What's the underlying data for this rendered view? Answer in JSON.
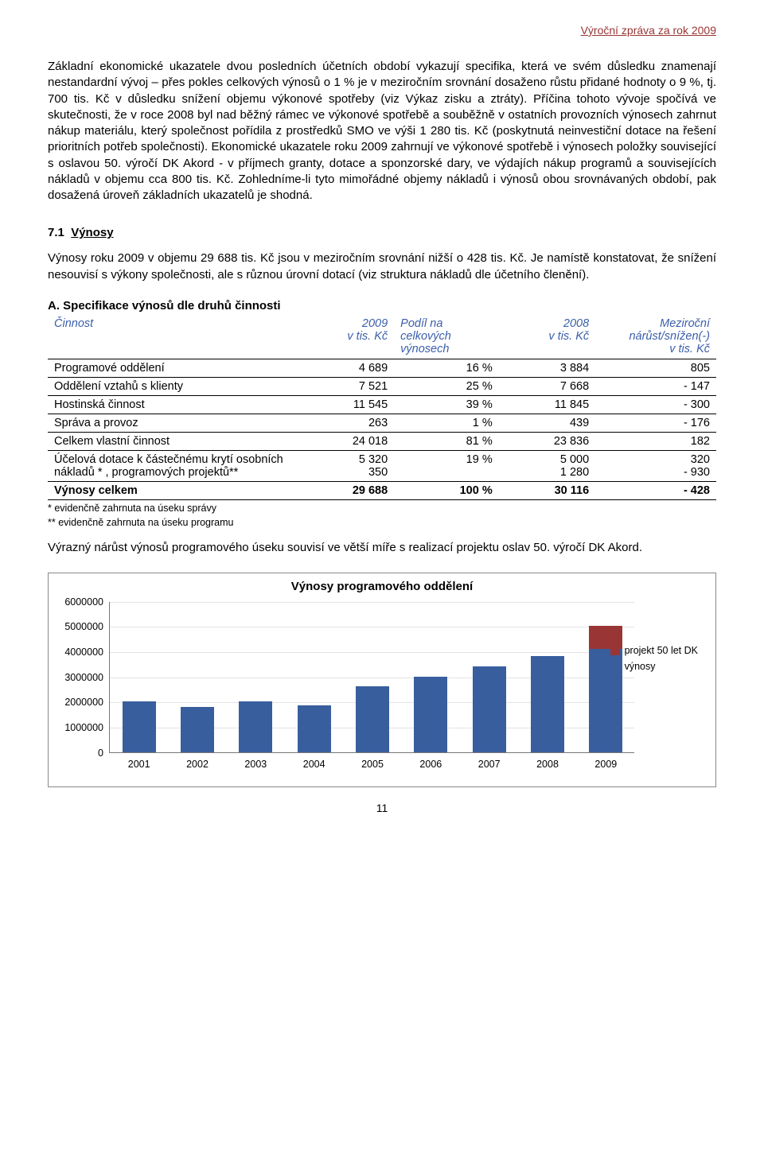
{
  "header": "Výroční zpráva za rok 2009",
  "para1": "Základní ekonomické ukazatele dvou posledních účetních období vykazují specifika, která ve svém důsledku znamenají nestandardní vývoj – přes pokles celkových výnosů o 1 % je v meziročním srovnání dosaženo růstu přidané hodnoty o 9 %, tj. 700 tis. Kč v důsledku snížení objemu výkonové spotřeby (viz Výkaz zisku a ztráty). Příčina tohoto vývoje spočívá ve skutečnosti, že v roce 2008 byl nad běžný rámec ve výkonové spotřebě a souběžně v ostatních provozních výnosech zahrnut nákup materiálu, který společnost pořídila z prostředků SMO ve výši 1 280 tis. Kč (poskytnutá neinvestiční dotace na řešení prioritních potřeb společnosti). Ekonomické ukazatele roku 2009 zahrnují ve výkonové spotřebě i výnosech položky související s oslavou 50. výročí DK Akord  - v příjmech granty, dotace a sponzorské dary, ve výdajích nákup programů a souvisejících nákladů v objemu cca 800 tis. Kč. Zohledníme-li tyto mimořádné objemy nákladů i výnosů obou srovnávaných období, pak dosažená úroveň základních ukazatelů je shodná.",
  "section71_num": "7.1",
  "section71_txt": "Výnosy",
  "para2": "Výnosy roku 2009 v objemu 29 688 tis. Kč jsou v meziročním srovnání nižší o 428 tis. Kč. Je namístě konstatovat, že snížení nesouvisí s výkony společnosti, ale s různou úrovní dotací (viz struktura nákladů dle účetního členění).",
  "subA": "A. Specifikace výnosů dle druhů činnosti",
  "table": {
    "head": {
      "c1": "Činnost",
      "c2a": "2009",
      "c2b": "v tis. Kč",
      "c3a": "Podíl na",
      "c3b": "celkových",
      "c3c": "výnosech",
      "c4a": "2008",
      "c4b": "v tis. Kč",
      "c5a": "Meziroční",
      "c5b": "nárůst/snížen(-)",
      "c5c": "v tis. Kč"
    },
    "rows": [
      {
        "name": "Programové oddělení",
        "v09": "4 689",
        "pod": "16 %",
        "v08": "3 884",
        "d": "805"
      },
      {
        "name": "Oddělení vztahů s klienty",
        "v09": "7 521",
        "pod": "25 %",
        "v08": "7 668",
        "d": "- 147"
      },
      {
        "name": "Hostinská činnost",
        "v09": "11 545",
        "pod": "39 %",
        "v08": "11 845",
        "d": "- 300"
      },
      {
        "name": "Správa a provoz",
        "v09": "263",
        "pod": "1 %",
        "v08": "439",
        "d": "- 176"
      },
      {
        "name": "Celkem vlastní činnost",
        "v09": "24 018",
        "pod": "81 %",
        "v08": "23 836",
        "d": "182"
      },
      {
        "name": "Účelová dotace k částečnému krytí osobních nákladů * , programových projektů**",
        "v09a": "5 320",
        "v09b": "350",
        "pod": "19 %",
        "v08a": "5 000",
        "v08b": "1 280",
        "da": "320",
        "db": "- 930"
      },
      {
        "name": "Výnosy celkem",
        "v09": "29 688",
        "pod": "100 %",
        "v08": "30 116",
        "d": "- 428"
      }
    ]
  },
  "foot1": "* evidenčně zahrnuta na úseku správy",
  "foot2": "** evidenčně zahrnuta na úseku programu",
  "para3": "Výrazný nárůst výnosů programového úseku souvisí ve větší míře s realizací projektu oslav 50. výročí DK Akord.",
  "chart": {
    "title": "Výnosy programového oddělení",
    "ymax": 6000000,
    "yticks": [
      0,
      1000000,
      2000000,
      3000000,
      4000000,
      5000000,
      6000000
    ],
    "categories": [
      "2001",
      "2002",
      "2003",
      "2004",
      "2005",
      "2006",
      "2007",
      "2008",
      "2009"
    ],
    "series_main": [
      2000000,
      1800000,
      2000000,
      1850000,
      2600000,
      3000000,
      3400000,
      3800000,
      4100000
    ],
    "series_top": [
      0,
      0,
      0,
      0,
      0,
      0,
      0,
      0,
      900000
    ],
    "color_main": "#385e9d",
    "color_top": "#9a3535",
    "grid_color": "#e3e3e3",
    "legend": [
      {
        "label": "projekt 50 let DK",
        "color": "#9a3535"
      },
      {
        "label": "výnosy",
        "color": "#385e9d"
      }
    ]
  },
  "page_num": "11"
}
